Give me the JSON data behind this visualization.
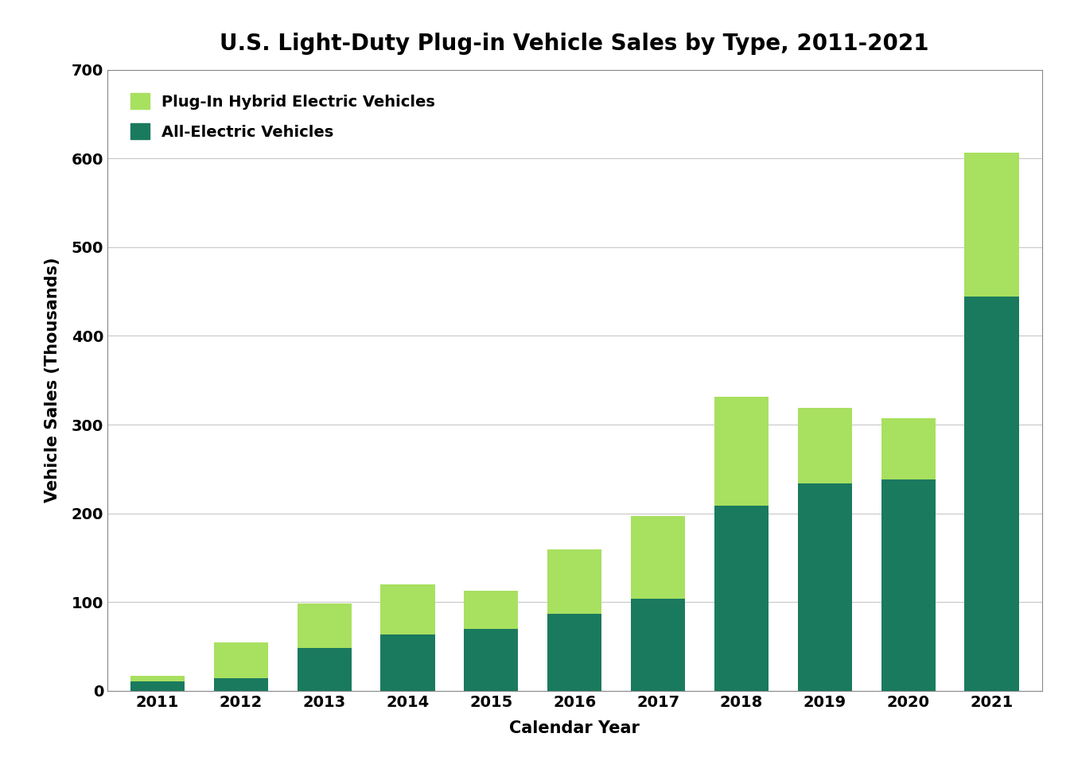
{
  "title": "U.S. Light-Duty Plug-in Vehicle Sales by Type, 2011-2021",
  "xlabel": "Calendar Year",
  "ylabel": "Vehicle Sales (Thousands)",
  "years": [
    2011,
    2012,
    2013,
    2014,
    2015,
    2016,
    2017,
    2018,
    2019,
    2020,
    2021
  ],
  "aev_values": [
    10,
    14,
    48,
    63,
    70,
    87,
    104,
    209,
    234,
    238,
    444
  ],
  "phev_values": [
    7,
    40,
    50,
    57,
    43,
    72,
    93,
    122,
    85,
    69,
    163
  ],
  "aev_color": "#1a7a5e",
  "phev_color": "#a8e060",
  "ylim": [
    0,
    700
  ],
  "yticks": [
    0,
    100,
    200,
    300,
    400,
    500,
    600,
    700
  ],
  "legend_phev": "Plug-In Hybrid Electric Vehicles",
  "legend_aev": "All-Electric Vehicles",
  "background_color": "#ffffff",
  "grid_color": "#c8c8c8",
  "title_fontsize": 20,
  "label_fontsize": 15,
  "tick_fontsize": 14,
  "legend_fontsize": 14,
  "bar_width": 0.65
}
